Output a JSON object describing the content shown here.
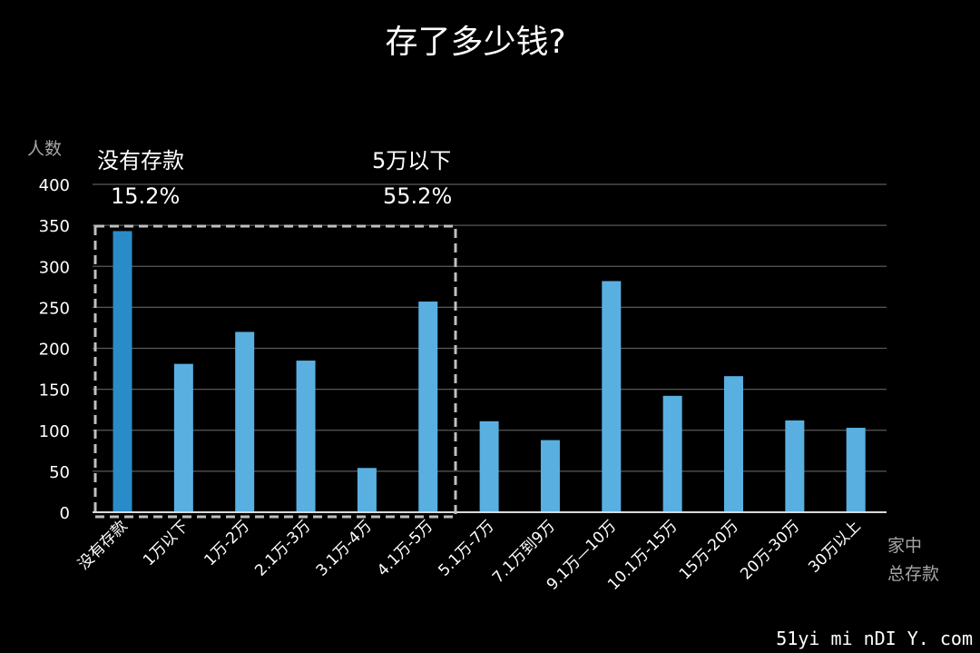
{
  "chart_data": {
    "type": "bar",
    "title": "存了多少钱?",
    "ylabel": "人数",
    "xlabel_lines": [
      "家中",
      "总存款"
    ],
    "ylim": [
      0,
      400
    ],
    "yticks": [
      0,
      50,
      100,
      150,
      200,
      250,
      300,
      350,
      400
    ],
    "grid": true,
    "categories": [
      "没有存款",
      "1万以下",
      "1万-2万",
      "2.1万-3万",
      "3.1万-4万",
      "4.1万-5万",
      "5.1万-7万",
      "7.1万到9万",
      "9.1万—10万",
      "10.1万-15万",
      "15万-20万",
      "20万-30万",
      "30万以上"
    ],
    "values": [
      343,
      181,
      220,
      185,
      54,
      257,
      111,
      88,
      282,
      142,
      166,
      112,
      103
    ],
    "bar_color": "#5aafe1",
    "highlight_color": "#2a8bc9",
    "highlight_index": 0,
    "annotations": [
      {
        "label": "没有存款",
        "value": "15.2%"
      },
      {
        "label": "5万以下",
        "value": "55.2%"
      }
    ]
  },
  "watermark": "51yi mi nDI Y. com"
}
